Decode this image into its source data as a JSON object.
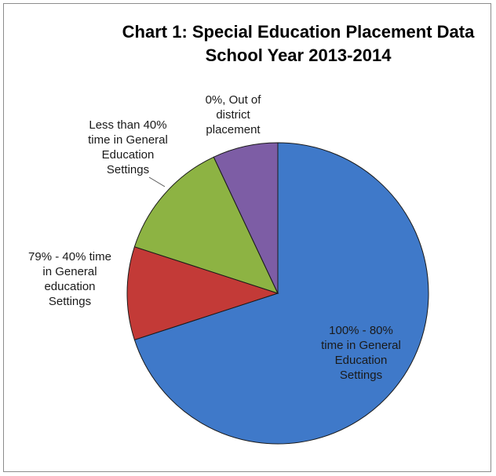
{
  "chart_data": {
    "type": "pie",
    "title": [
      "Chart 1: Special Education Placement Data",
      "School Year 2013-2014"
    ],
    "slices": [
      {
        "label": [
          "100% - 80%",
          "time in General",
          "Education",
          "Settings"
        ],
        "value": 70,
        "color": "#3f79c9"
      },
      {
        "label": [
          "79% - 40% time",
          "in General",
          "education",
          "Settings"
        ],
        "value": 10,
        "color": "#c33a37"
      },
      {
        "label": [
          "Less than 40%",
          "time in General",
          "Education",
          "Settings"
        ],
        "value": 13,
        "color": "#8db343"
      },
      {
        "label": [
          "0%, Out of",
          "district",
          "placement"
        ],
        "value": 7,
        "color": "#7d5da5"
      }
    ],
    "legend": "none",
    "data_labels": "category name, outside/inside with leader line"
  }
}
